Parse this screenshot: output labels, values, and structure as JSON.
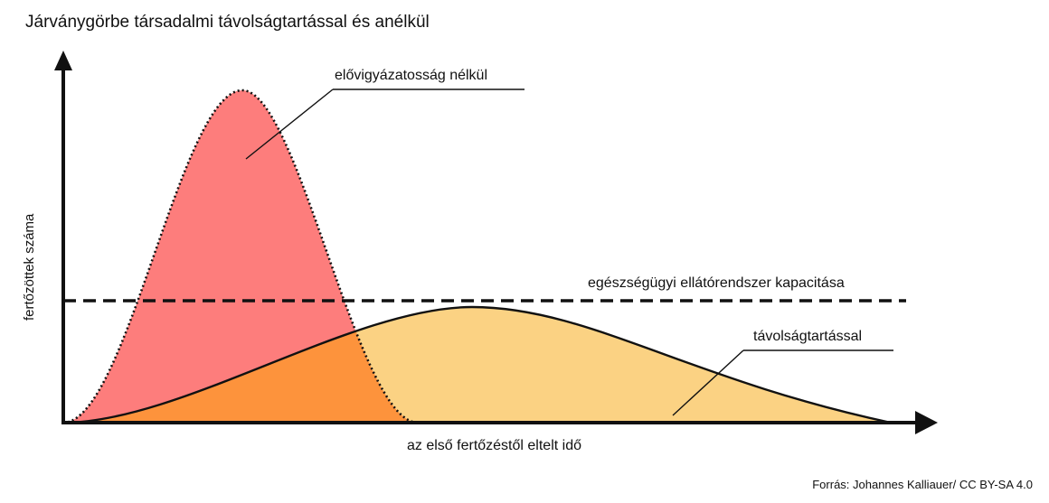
{
  "title": "Járványgörbe társadalmi távolságtartással és anélkül",
  "axes": {
    "y_label": "fertőzöttek száma",
    "x_label": "az első fertőzéstől eltelt idő"
  },
  "annotations": {
    "without_precautions": "elővigyázatosság nélkül",
    "capacity": "egészségügyi ellátórendszer kapacitása",
    "with_distancing": "távolságtartással"
  },
  "source": "Forrás: Johannes Kalliauer/ CC BY-SA 4.0",
  "colors": {
    "peak_fill": "#fd7d7c",
    "flat_fill": "#fbd283",
    "overlap_fill": "#fd933c",
    "line": "#111111"
  }
}
